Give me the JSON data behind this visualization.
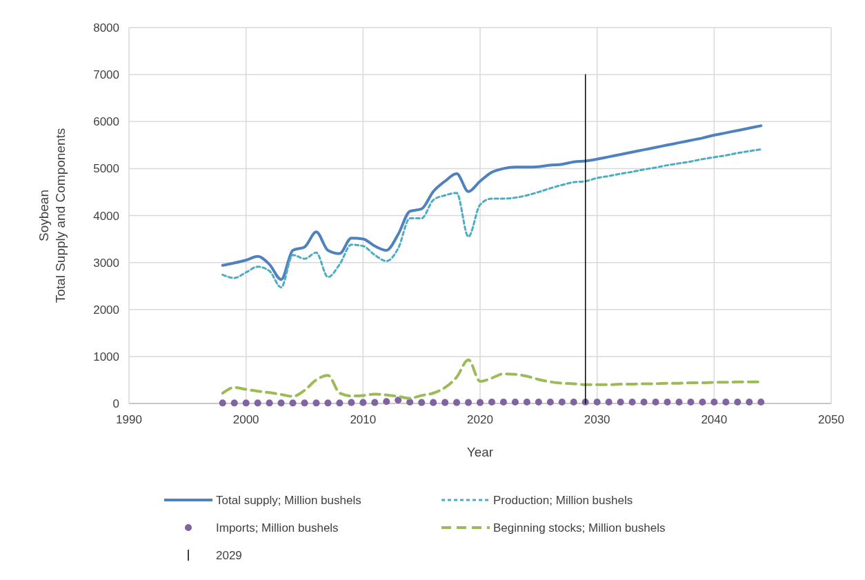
{
  "chart_data": {
    "type": "line",
    "xlabel": "Year",
    "ylabel": "Soybean\nTotal Supply and Components",
    "xlim": [
      1990,
      2050
    ],
    "xticks": [
      1990,
      2000,
      2010,
      2020,
      2030,
      2040,
      2050
    ],
    "ylim": [
      0,
      8000
    ],
    "yticks": [
      0,
      1000,
      2000,
      3000,
      4000,
      5000,
      6000,
      7000,
      8000
    ],
    "grid": true,
    "legend": "bottom",
    "x": [
      1998,
      1999,
      2000,
      2001,
      2002,
      2003,
      2004,
      2005,
      2006,
      2007,
      2008,
      2009,
      2010,
      2011,
      2012,
      2013,
      2014,
      2015,
      2016,
      2017,
      2018,
      2019,
      2020,
      2021,
      2022,
      2023,
      2024,
      2025,
      2026,
      2027,
      2028,
      2029,
      2030,
      2031,
      2032,
      2033,
      2034,
      2035,
      2036,
      2037,
      2038,
      2039,
      2040,
      2041,
      2042,
      2043,
      2044
    ],
    "series": [
      {
        "name": "Total supply; Million bushels",
        "color": "#4f81bd",
        "line_style": "solid",
        "values": [
          2940,
          2990,
          3050,
          3130,
          2960,
          2640,
          3260,
          3330,
          3650,
          3260,
          3190,
          3520,
          3500,
          3350,
          3260,
          3600,
          4090,
          4140,
          4510,
          4730,
          4890,
          4510,
          4730,
          4920,
          5000,
          5030,
          5030,
          5040,
          5070,
          5090,
          5140,
          5160,
          5200,
          5250,
          5300,
          5350,
          5400,
          5450,
          5500,
          5550,
          5600,
          5650,
          5710,
          5760,
          5810,
          5860,
          5910
        ]
      },
      {
        "name": "Production; Million bushels",
        "color": "#4bacc6",
        "line_style": "dotted",
        "values": [
          2740,
          2670,
          2790,
          2910,
          2820,
          2470,
          3160,
          3080,
          3210,
          2690,
          2960,
          3380,
          3350,
          3160,
          3030,
          3300,
          3940,
          3940,
          4330,
          4430,
          4480,
          3550,
          4230,
          4360,
          4360,
          4380,
          4430,
          4500,
          4580,
          4650,
          4710,
          4730,
          4800,
          4840,
          4890,
          4930,
          4980,
          5020,
          5070,
          5110,
          5150,
          5200,
          5240,
          5280,
          5330,
          5370,
          5410
        ]
      },
      {
        "name": "Imports; Million bushels",
        "color": "#8064a2",
        "type": "scatter",
        "marker": "circle",
        "values": [
          10,
          10,
          10,
          10,
          10,
          10,
          10,
          10,
          10,
          10,
          10,
          20,
          20,
          20,
          40,
          70,
          30,
          20,
          20,
          20,
          20,
          20,
          20,
          30,
          30,
          30,
          30,
          30,
          30,
          30,
          30,
          30,
          30,
          30,
          30,
          30,
          30,
          30,
          30,
          30,
          30,
          30,
          30,
          30,
          30,
          30,
          30
        ]
      },
      {
        "name": "Beginning stocks; Million bushels",
        "color": "#9bbb59",
        "line_style": "dashed",
        "values": [
          220,
          340,
          300,
          260,
          230,
          190,
          150,
          280,
          500,
          600,
          220,
          160,
          170,
          200,
          180,
          150,
          110,
          170,
          220,
          340,
          560,
          930,
          470,
          540,
          630,
          620,
          580,
          510,
          460,
          430,
          420,
          400,
          400,
          400,
          410,
          410,
          420,
          420,
          430,
          430,
          440,
          440,
          450,
          450,
          460,
          460,
          460
        ]
      },
      {
        "name": "2029",
        "color": "#000000",
        "line_style": "solid",
        "x": [
          2029,
          2029
        ],
        "values": [
          0,
          7000
        ]
      }
    ]
  }
}
